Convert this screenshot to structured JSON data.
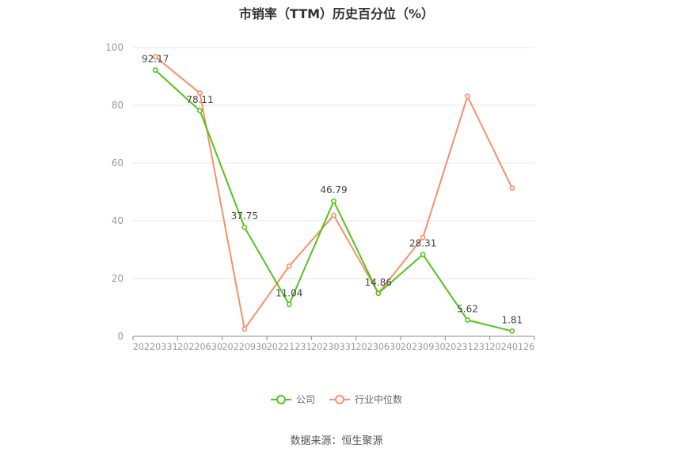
{
  "title": "市销率（TTM）历史百分位（%）",
  "source": "数据来源：恒生聚源",
  "colors": {
    "company": "#52c41a",
    "industry": "#f5916a",
    "grid": "#e6e6ee",
    "axis": "#999999"
  },
  "chart_data": {
    "type": "line",
    "categories": [
      "20220331",
      "20220630",
      "20220930",
      "20221231",
      "20230331",
      "20230630",
      "20230930",
      "20231231",
      "20240126"
    ],
    "ylim": [
      0,
      100
    ],
    "yticks": [
      0,
      20,
      40,
      60,
      80,
      100
    ],
    "grid": true,
    "legend_position": "bottom",
    "series": [
      {
        "name": "公司",
        "color": "#52c41a",
        "values": [
          92.17,
          78.11,
          37.75,
          11.04,
          46.79,
          14.86,
          28.31,
          5.62,
          1.81
        ],
        "labels": [
          "92.17",
          "78.11",
          "37.75",
          "11.04",
          "46.79",
          "14.86",
          "28.31",
          "5.62",
          "1.81"
        ]
      },
      {
        "name": "行业中位数",
        "color": "#f5916a",
        "values": [
          96.8,
          84.2,
          2.5,
          24.3,
          41.9,
          14.9,
          34.2,
          83.1,
          51.3
        ]
      }
    ]
  }
}
